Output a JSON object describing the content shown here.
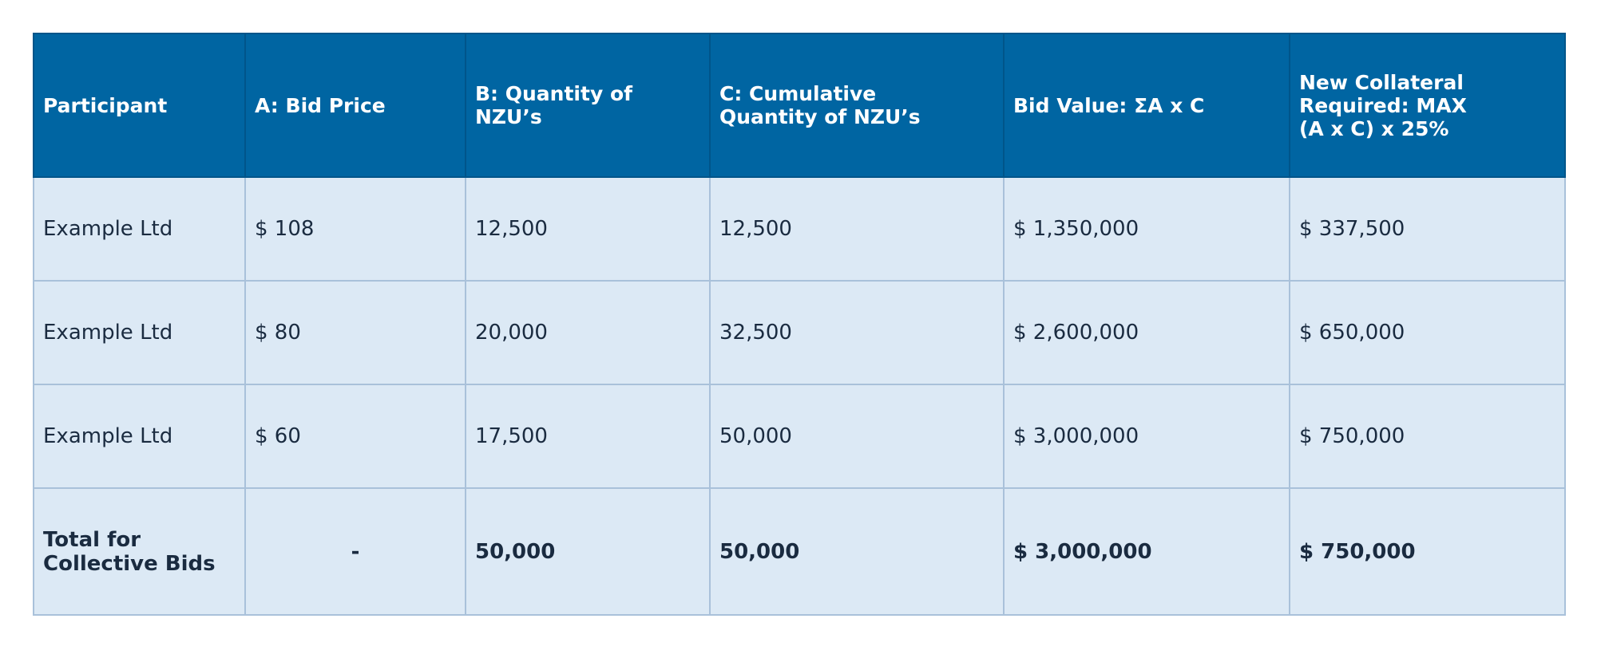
{
  "table": {
    "header": [
      [
        "Participant"
      ],
      [
        "A: Bid Price"
      ],
      [
        "B: Quantity of",
        "NZU’s"
      ],
      [
        "C: Cumulative",
        "Quantity of NZU’s"
      ],
      [
        "Bid Value: ΣA x C"
      ],
      [
        "New Collateral",
        "Required: MAX",
        "(A x C) x 25%"
      ]
    ],
    "rows": [
      [
        [
          "Example Ltd"
        ],
        [
          "$ 108"
        ],
        [
          "12,500"
        ],
        [
          "12,500"
        ],
        [
          "$ 1,350,000"
        ],
        [
          "$ 337,500"
        ]
      ],
      [
        [
          "Example Ltd"
        ],
        [
          "$ 80"
        ],
        [
          "20,000"
        ],
        [
          "32,500"
        ],
        [
          "$ 2,600,000"
        ],
        [
          "$ 650,000"
        ]
      ],
      [
        [
          "Example Ltd"
        ],
        [
          "$ 60"
        ],
        [
          "17,500"
        ],
        [
          "50,000"
        ],
        [
          "$ 3,000,000"
        ],
        [
          "$ 750,000"
        ]
      ]
    ],
    "total": [
      [
        "Total for",
        "Collective Bids"
      ],
      [
        "-"
      ],
      [
        "50,000"
      ],
      [
        "50,000"
      ],
      [
        "$ 3,000,000"
      ],
      [
        "$ 750,000"
      ]
    ]
  }
}
